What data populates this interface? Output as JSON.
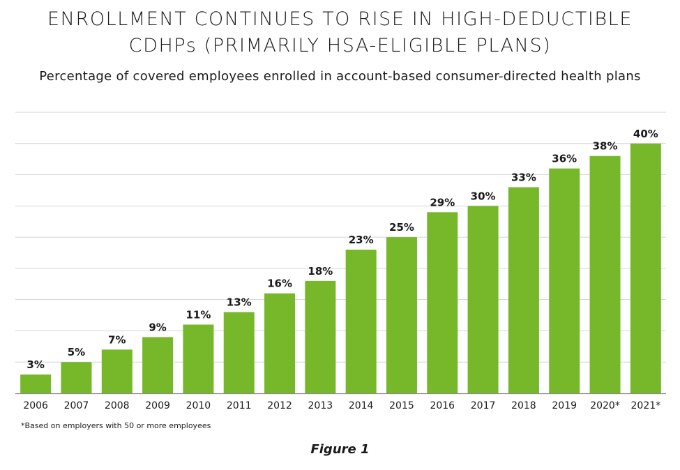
{
  "chart_data": {
    "type": "bar",
    "title_lines": [
      "ENROLLMENT CONTINUES TO RISE IN HIGH-DEDUCTIBLE",
      "CDHPs (PRIMARILY HSA-ELIGIBLE PLANS)"
    ],
    "subtitle": "Percentage of covered employees enrolled in account-based consumer-directed health plans",
    "categories": [
      "2006",
      "2007",
      "2008",
      "2009",
      "2010",
      "2011",
      "2012",
      "2013",
      "2014",
      "2015",
      "2016",
      "2017",
      "2018",
      "2019",
      "2020*",
      "2021*"
    ],
    "values": [
      3,
      5,
      7,
      9,
      11,
      13,
      16,
      18,
      23,
      25,
      29,
      30,
      33,
      36,
      38,
      40
    ],
    "data_labels": [
      "3%",
      "5%",
      "7%",
      "9%",
      "11%",
      "13%",
      "16%",
      "18%",
      "23%",
      "25%",
      "29%",
      "30%",
      "33%",
      "36%",
      "38%",
      "40%"
    ],
    "ylim": [
      0,
      45
    ],
    "ytick_step": 5,
    "xlabel": "",
    "ylabel": "",
    "grid": true,
    "legend": "none",
    "footnote": "*Based on employers with 50 or more employees",
    "caption": "Figure 1",
    "colors": {
      "bar": "#76b82a",
      "grid": "#d4d4d4",
      "baseline": "#8a8a8a",
      "text": "#1a1a1a"
    }
  }
}
